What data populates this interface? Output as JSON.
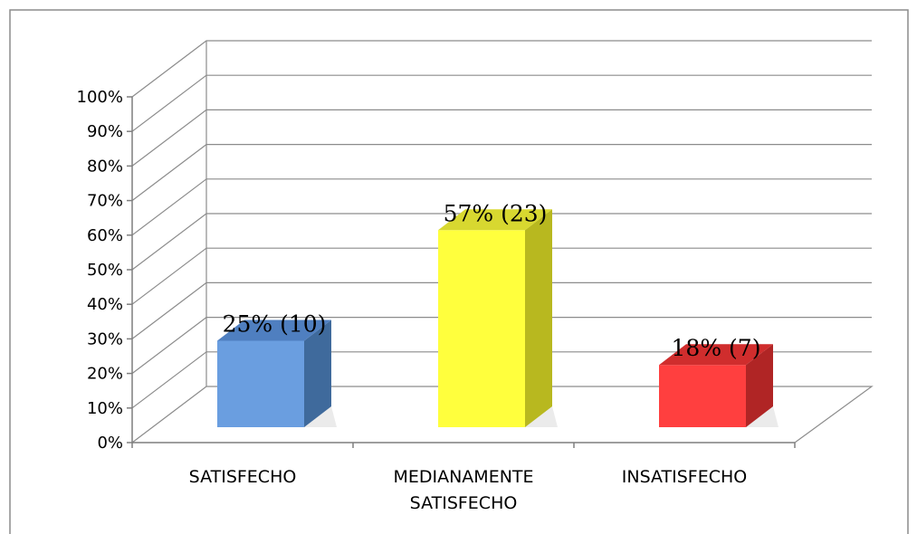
{
  "chart_data": {
    "type": "bar",
    "categories": [
      "SATISFECHO",
      "MEDIANAMENTE SATISFECHO",
      "INSATISFECHO"
    ],
    "category_lines": [
      [
        "SATISFECHO"
      ],
      [
        "MEDIANAMENTE",
        "SATISFECHO"
      ],
      [
        "INSATISFECHO"
      ]
    ],
    "values": [
      25,
      57,
      18
    ],
    "data_labels": [
      "25% (10)",
      "57% (23)",
      "18% (7)"
    ],
    "y_ticks": [
      "0%",
      "10%",
      "20%",
      "30%",
      "40%",
      "50%",
      "60%",
      "70%",
      "80%",
      "90%",
      "100%"
    ],
    "ylim": [
      0,
      100
    ],
    "grid": true,
    "three_d": true,
    "title": "",
    "xlabel": "",
    "ylabel": "",
    "colors": {
      "bars": [
        "#6a9ee0",
        "#ffff3d",
        "#ff3f3f"
      ],
      "bar_sides": [
        "#3f6a9c",
        "#b8b81f",
        "#b02525"
      ],
      "bar_tops": [
        "#4f7fc0",
        "#d8d830",
        "#d02d2d"
      ],
      "grid": "#8c8c8c",
      "axis": "#7f7f7f",
      "frame": "#8c8c8c"
    }
  }
}
